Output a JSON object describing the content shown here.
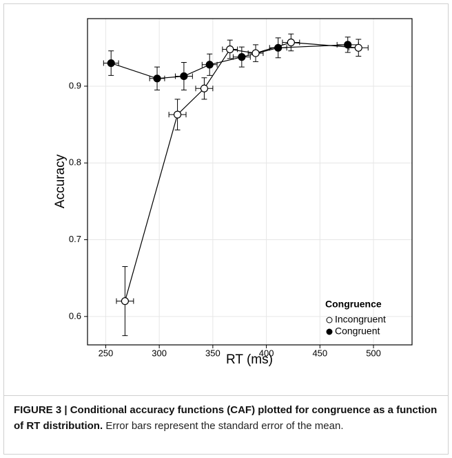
{
  "chart_data": {
    "type": "errorline",
    "x_label": "RT (ms)",
    "y_label": "Accuracy",
    "xlim": [
      233,
      536
    ],
    "ylim": [
      0.563,
      0.988
    ],
    "xticks": [
      250,
      300,
      350,
      400,
      450,
      500
    ],
    "yticks": [
      0.6,
      0.7,
      0.8,
      0.9
    ],
    "grid": true,
    "legend_title": "Congruence",
    "legend_position": "lower right",
    "series": [
      {
        "name": "Incongruent",
        "color": "#ffffff",
        "x": [
          268,
          317,
          342,
          366,
          390,
          423,
          486
        ],
        "values": [
          0.62,
          0.863,
          0.897,
          0.948,
          0.943,
          0.957,
          0.95
        ],
        "errors": [
          0.045,
          0.02,
          0.014,
          0.012,
          0.011,
          0.011,
          0.011
        ],
        "x_errors": [
          8,
          8,
          8,
          7,
          7,
          8,
          9
        ]
      },
      {
        "name": "Congruent",
        "color": "#000000",
        "x": [
          255,
          298,
          323,
          347,
          377,
          411,
          476
        ],
        "values": [
          0.93,
          0.91,
          0.913,
          0.928,
          0.938,
          0.95,
          0.954
        ],
        "errors": [
          0.016,
          0.015,
          0.018,
          0.014,
          0.013,
          0.013,
          0.01
        ],
        "x_errors": [
          7,
          7,
          8,
          7,
          8,
          8,
          10
        ]
      }
    ]
  },
  "caption": {
    "label": "FIGURE 3 | Conditional accuracy functions (CAF) plotted for congruence as a function of RT distribution.",
    "text": "Error bars represent the standard error of the mean."
  }
}
